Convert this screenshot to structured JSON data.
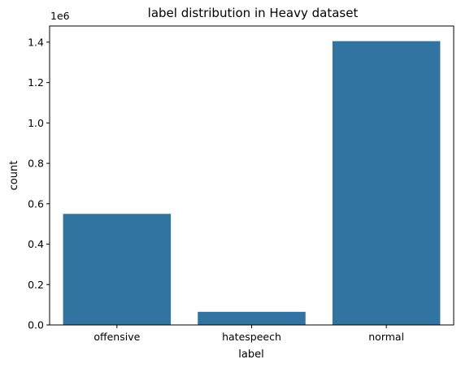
{
  "chart_data": {
    "type": "bar",
    "title": "label distribution in Heavy dataset",
    "xlabel": "label",
    "ylabel": "count",
    "y_offset_label": "1e6",
    "categories": [
      "offensive",
      "hatespeech",
      "normal"
    ],
    "values": [
      550000,
      65000,
      1405000
    ],
    "ylim": [
      0,
      1480000
    ],
    "yticks": [
      0,
      200000,
      400000,
      600000,
      800000,
      1000000,
      1200000,
      1400000
    ],
    "ytick_labels": [
      "0.0",
      "0.2",
      "0.4",
      "0.6",
      "0.8",
      "1.0",
      "1.2",
      "1.4"
    ],
    "bar_color": "#3274a1",
    "grid": false,
    "legend": "none"
  }
}
